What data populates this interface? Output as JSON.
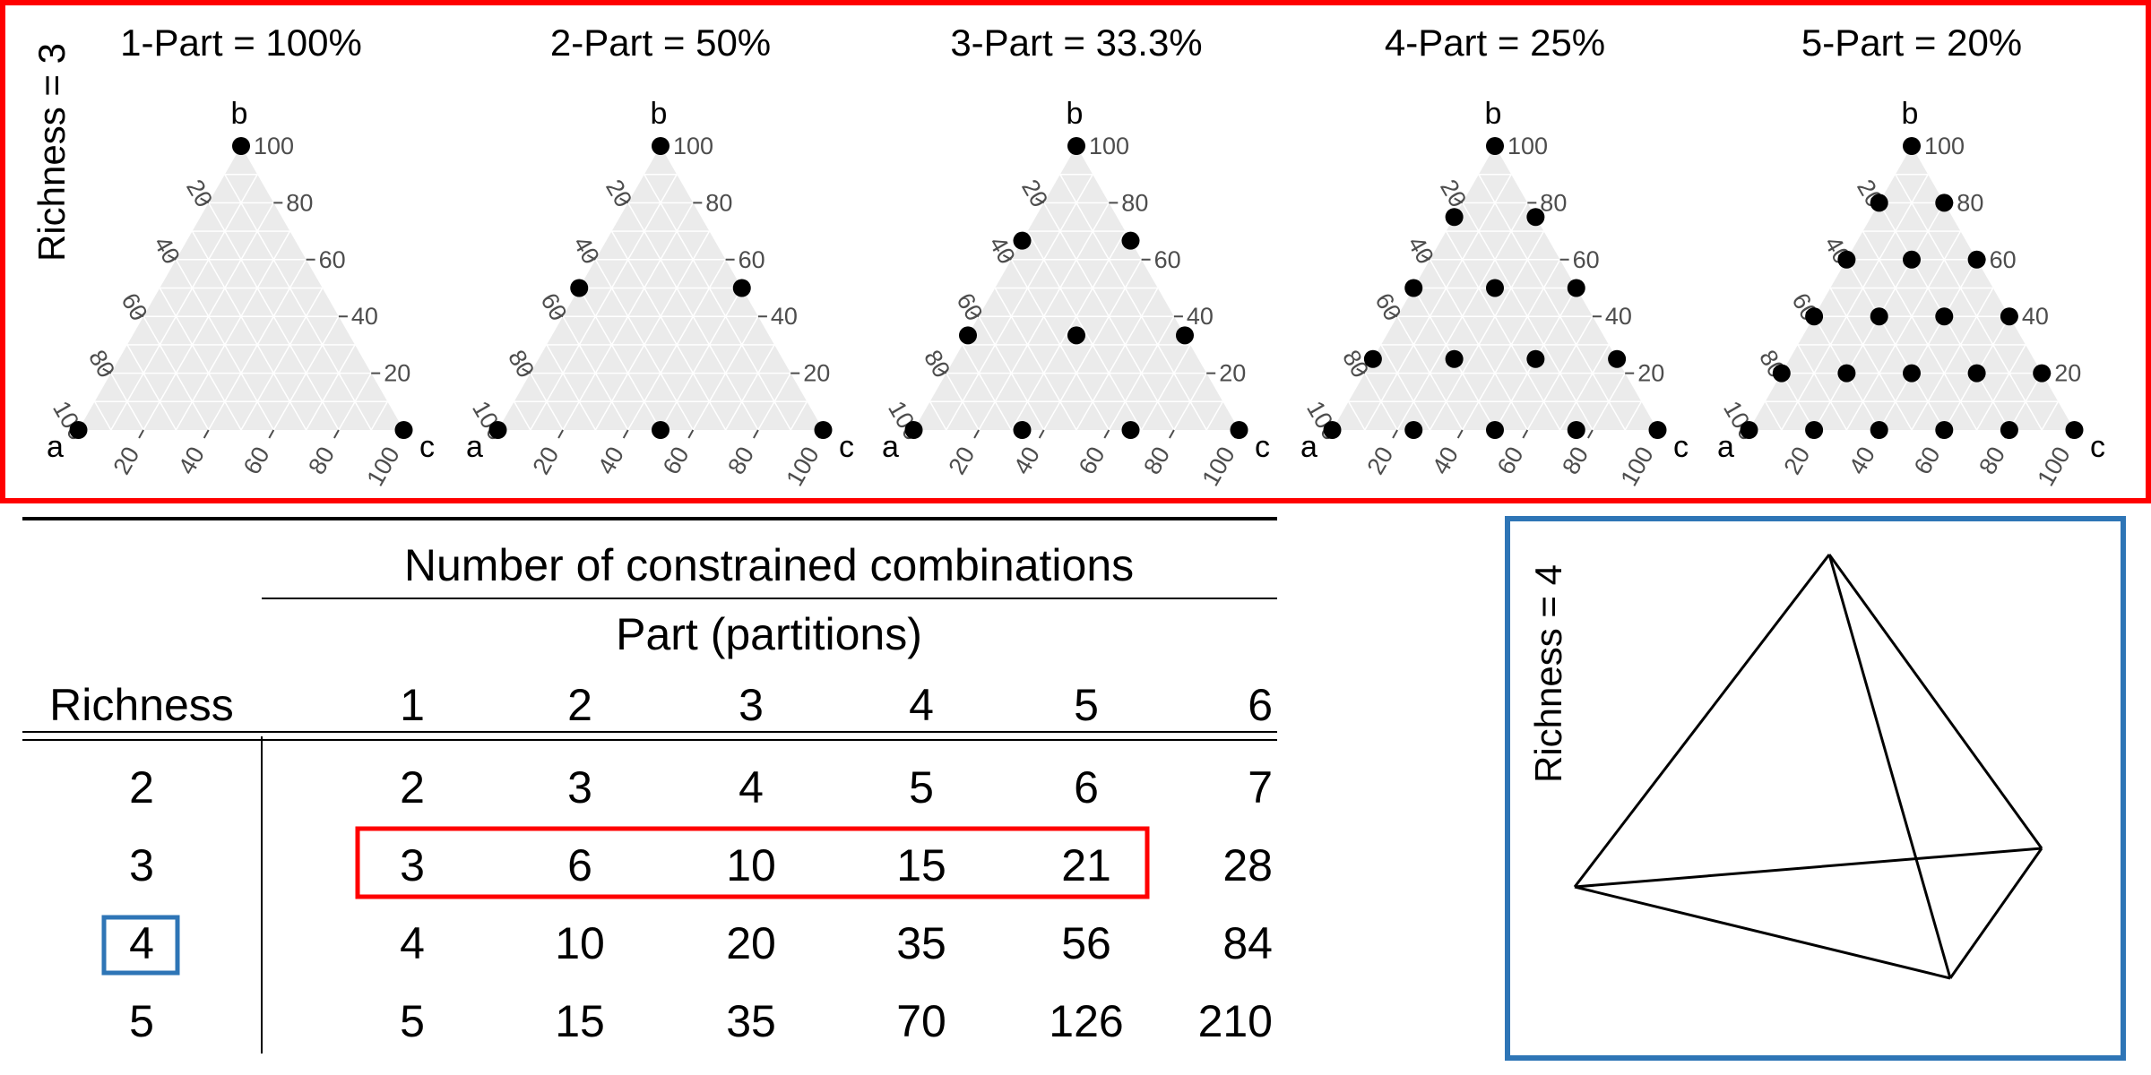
{
  "ternary_section": {
    "richness_label": "Richness = 3",
    "highlight_color": "#ff0000",
    "plots": [
      {
        "title": "1-Part = 100%",
        "parts": 1
      },
      {
        "title": "2-Part = 50%",
        "parts": 2
      },
      {
        "title": "3-Part = 33.3%",
        "parts": 3
      },
      {
        "title": "4-Part = 25%",
        "parts": 4
      },
      {
        "title": "5-Part = 20%",
        "parts": 5
      }
    ],
    "vertex_labels": {
      "left": "a",
      "top": "b",
      "right": "c"
    },
    "axis_ticks": [
      "20",
      "40",
      "60",
      "80",
      "100"
    ],
    "triangle_fill": "#ebebeb",
    "point_color": "#000000"
  },
  "table": {
    "title": "Number of constrained combinations",
    "subtitle": "Part (partitions)",
    "row_header": "Richness",
    "columns": [
      "1",
      "2",
      "3",
      "4",
      "5",
      "6"
    ],
    "rows": [
      {
        "richness": "2",
        "values": [
          "2",
          "3",
          "4",
          "5",
          "6",
          "7"
        ]
      },
      {
        "richness": "3",
        "values": [
          "3",
          "6",
          "10",
          "15",
          "21",
          "28"
        ]
      },
      {
        "richness": "4",
        "values": [
          "4",
          "10",
          "20",
          "35",
          "56",
          "84"
        ]
      },
      {
        "richness": "5",
        "values": [
          "5",
          "15",
          "35",
          "70",
          "126",
          "210"
        ]
      }
    ],
    "highlight_row_color": "#ff0000",
    "highlight_cell_color": "#2e75b6"
  },
  "tetrahedron": {
    "richness_label": "Richness = 4",
    "border_color": "#2e75b6"
  }
}
